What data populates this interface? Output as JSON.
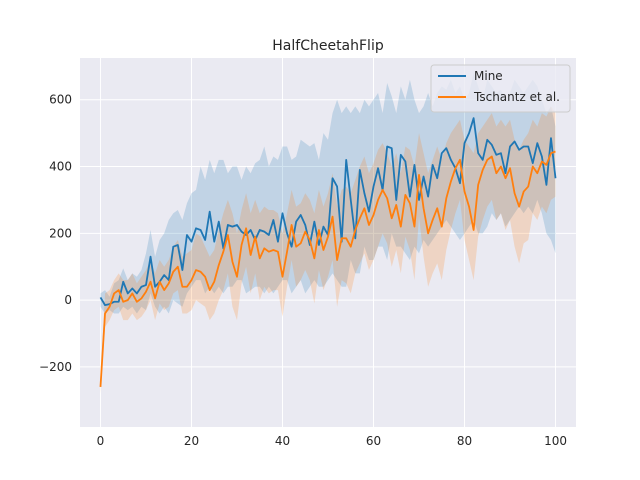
{
  "chart_data": {
    "type": "line",
    "title": "HalfCheetahFlip",
    "xlabel": "",
    "ylabel": "",
    "xlim": [
      -4.5,
      104.5
    ],
    "ylim": [
      -380,
      725
    ],
    "xticks": [
      0,
      20,
      40,
      60,
      80,
      100
    ],
    "yticks": [
      -200,
      0,
      200,
      400,
      600
    ],
    "ytick_labels": [
      "−200",
      "0",
      "200",
      "400",
      "600"
    ],
    "grid": true,
    "legend_position": "top-right",
    "x": [
      0,
      1,
      2,
      3,
      4,
      5,
      6,
      7,
      8,
      9,
      10,
      11,
      12,
      13,
      14,
      15,
      16,
      17,
      18,
      19,
      20,
      21,
      22,
      23,
      24,
      25,
      26,
      27,
      28,
      29,
      30,
      31,
      32,
      33,
      34,
      35,
      36,
      37,
      38,
      39,
      40,
      41,
      42,
      43,
      44,
      45,
      46,
      47,
      48,
      49,
      50,
      51,
      52,
      53,
      54,
      55,
      56,
      57,
      58,
      59,
      60,
      61,
      62,
      63,
      64,
      65,
      66,
      67,
      68,
      69,
      70,
      71,
      72,
      73,
      74,
      75,
      76,
      77,
      78,
      79,
      80,
      81,
      82,
      83,
      84,
      85,
      86,
      87,
      88,
      89,
      90,
      91,
      92,
      93,
      94,
      95,
      96,
      97,
      98,
      99,
      100
    ],
    "series": [
      {
        "name": "Mine",
        "color": "#1f77b4",
        "values": [
          8,
          -15,
          -12,
          -5,
          -5,
          55,
          20,
          35,
          20,
          40,
          45,
          130,
          40,
          55,
          75,
          60,
          160,
          165,
          90,
          195,
          175,
          215,
          210,
          180,
          265,
          175,
          235,
          155,
          225,
          220,
          225,
          205,
          195,
          210,
          180,
          210,
          205,
          195,
          240,
          175,
          260,
          200,
          160,
          235,
          255,
          225,
          165,
          235,
          165,
          220,
          195,
          365,
          340,
          175,
          420,
          300,
          185,
          390,
          320,
          265,
          340,
          395,
          330,
          460,
          455,
          300,
          435,
          415,
          310,
          405,
          300,
          370,
          310,
          405,
          365,
          440,
          455,
          420,
          395,
          350,
          470,
          500,
          545,
          440,
          420,
          480,
          465,
          435,
          440,
          380,
          460,
          475,
          450,
          460,
          460,
          410,
          470,
          430,
          345,
          485,
          365
        ],
        "upper": [
          20,
          30,
          10,
          50,
          60,
          95,
          60,
          80,
          70,
          90,
          140,
          210,
          130,
          180,
          200,
          240,
          260,
          270,
          240,
          290,
          320,
          330,
          400,
          360,
          420,
          380,
          420,
          420,
          380,
          400,
          400,
          360,
          400,
          380,
          410,
          420,
          460,
          400,
          430,
          420,
          460,
          460,
          420,
          430,
          480,
          470,
          460,
          470,
          420,
          500,
          480,
          560,
          600,
          560,
          580,
          560,
          580,
          560,
          600,
          580,
          600,
          620,
          560,
          650,
          610,
          560,
          640,
          600,
          660,
          600,
          560,
          580,
          620,
          580,
          620,
          640,
          630,
          660,
          620,
          640,
          600,
          620,
          680,
          640,
          600,
          660,
          640,
          620,
          630,
          600,
          620,
          660,
          640,
          620,
          640,
          660,
          640,
          600,
          560,
          580,
          520
        ],
        "lower": [
          -20,
          -40,
          -30,
          -40,
          -40,
          -20,
          -30,
          -20,
          -40,
          -20,
          -30,
          20,
          -20,
          -40,
          -20,
          -40,
          0,
          -10,
          -20,
          20,
          40,
          60,
          60,
          20,
          40,
          20,
          40,
          20,
          40,
          40,
          60,
          60,
          20,
          30,
          40,
          40,
          20,
          40,
          20,
          40,
          60,
          60,
          20,
          40,
          60,
          20,
          40,
          60,
          40,
          40,
          60,
          80,
          60,
          40,
          40,
          120,
          80,
          80,
          160,
          120,
          120,
          160,
          160,
          120,
          200,
          160,
          160,
          140,
          120,
          160,
          140,
          180,
          160,
          180,
          200,
          220,
          240,
          220,
          200,
          180,
          200,
          220,
          240,
          200,
          200,
          220,
          260,
          240,
          260,
          220,
          240,
          260,
          280,
          260,
          280,
          260,
          300,
          260,
          200,
          180,
          140
        ]
      },
      {
        "name": "Tschantz et al.",
        "color": "#ff7f0e",
        "values": [
          -260,
          -40,
          -20,
          20,
          30,
          -5,
          0,
          20,
          -5,
          5,
          25,
          55,
          5,
          55,
          30,
          50,
          85,
          100,
          40,
          40,
          60,
          90,
          85,
          70,
          30,
          55,
          105,
          145,
          195,
          115,
          70,
          165,
          215,
          135,
          190,
          125,
          155,
          145,
          150,
          145,
          70,
          145,
          225,
          160,
          170,
          205,
          180,
          125,
          210,
          150,
          190,
          250,
          120,
          185,
          185,
          160,
          210,
          245,
          275,
          225,
          255,
          300,
          330,
          305,
          245,
          285,
          220,
          315,
          290,
          220,
          375,
          275,
          200,
          240,
          275,
          220,
          305,
          355,
          395,
          420,
          325,
          280,
          210,
          345,
          390,
          420,
          430,
          380,
          400,
          365,
          395,
          320,
          280,
          325,
          340,
          400,
          380,
          415,
          405,
          440,
          445
        ],
        "upper": [
          -240,
          20,
          30,
          60,
          80,
          60,
          60,
          80,
          50,
          70,
          90,
          120,
          80,
          120,
          100,
          120,
          160,
          180,
          130,
          140,
          150,
          200,
          190,
          160,
          130,
          150,
          210,
          260,
          300,
          260,
          200,
          270,
          320,
          260,
          300,
          260,
          280,
          270,
          270,
          260,
          200,
          260,
          330,
          280,
          290,
          320,
          300,
          260,
          330,
          280,
          320,
          380,
          280,
          330,
          340,
          320,
          360,
          400,
          430,
          380,
          410,
          450,
          470,
          440,
          400,
          440,
          380,
          460,
          450,
          400,
          500,
          440,
          380,
          420,
          460,
          420,
          470,
          500,
          520,
          540,
          480,
          460,
          440,
          500,
          520,
          540,
          560,
          520,
          540,
          520,
          540,
          480,
          450,
          480,
          500,
          540,
          520,
          560,
          550,
          580,
          560
        ],
        "lower": [
          -280,
          -80,
          -60,
          -30,
          -20,
          -60,
          -60,
          -40,
          -60,
          -50,
          -30,
          0,
          -60,
          -10,
          -30,
          -20,
          20,
          30,
          -40,
          -40,
          -30,
          0,
          -10,
          -20,
          -60,
          -40,
          0,
          30,
          80,
          -20,
          -60,
          50,
          100,
          20,
          80,
          0,
          40,
          20,
          30,
          30,
          -50,
          40,
          120,
          40,
          60,
          90,
          60,
          -10,
          90,
          30,
          70,
          120,
          -20,
          60,
          50,
          20,
          80,
          110,
          140,
          90,
          120,
          160,
          200,
          170,
          100,
          150,
          80,
          190,
          150,
          60,
          250,
          130,
          40,
          80,
          110,
          60,
          150,
          210,
          260,
          300,
          180,
          120,
          60,
          190,
          240,
          280,
          300,
          240,
          260,
          210,
          240,
          160,
          110,
          170,
          180,
          260,
          240,
          280,
          260,
          300,
          310
        ]
      }
    ]
  }
}
